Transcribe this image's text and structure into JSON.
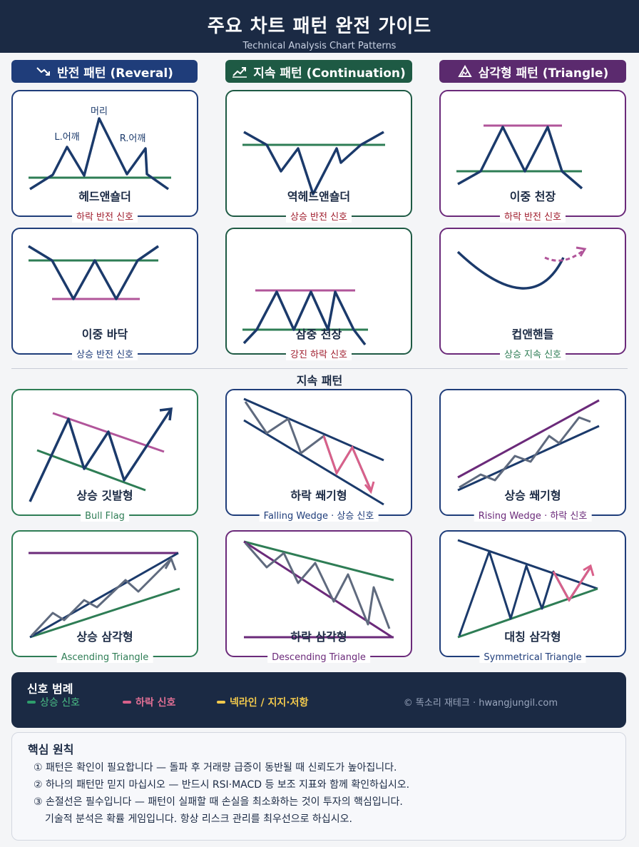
{
  "header": {
    "title": "주요 차트 패턴 완전 가이드",
    "subtitle": "Technical Analysis Chart Patterns"
  },
  "categories": {
    "reversal": {
      "label": "반전 패턴 (Reveral)",
      "color": "#1f3d7a"
    },
    "continuation": {
      "label": "지속 패턴 (Continuation)",
      "color": "#1e5a44"
    },
    "triangle": {
      "label": "삼각형 패턴 (Triangle)",
      "color": "#5b2a6e"
    }
  },
  "colors": {
    "bullish": "#2e7d55",
    "bearish": "#d9608a",
    "neckline": "#f2c94c",
    "navy": "#1b3a6b",
    "purple": "#6b2a7a"
  },
  "labels": {
    "head": "머리",
    "left_shoulder": "L.어깨",
    "right_shoulder": "R.어깨"
  },
  "cards": [
    {
      "name": "헤드앤숄더",
      "signal": "하락 반전 신호"
    },
    {
      "name": "역헤드앤숄더",
      "signal": "상승 반전 신호"
    },
    {
      "name": "이중 천장",
      "signal": "하락 반전 신호"
    },
    {
      "name": "이중 바닥",
      "signal": "상승 반전 신호"
    },
    {
      "name": "삼중 천장",
      "signal": "강진 하락 신호"
    },
    {
      "name": "컵앤핸들",
      "signal": "상승 지속 신호"
    },
    {
      "name": "상승 깃발형",
      "signal": "Bull Flag"
    },
    {
      "name": "하락 쐐기형",
      "signal": "Falling Wedge · 상승 신호"
    },
    {
      "name": "상승 쐐기형",
      "signal": "Rising Wedge · 하락 신호"
    },
    {
      "name": "상승 삼각형",
      "signal": "Ascending Triangle"
    },
    {
      "name": "하락 삼각형",
      "signal": "Descending Triangle"
    },
    {
      "name": "대칭 삼각형",
      "signal": "Symmetrical Triangle"
    }
  ],
  "section2_label": "지속 패턴",
  "legend": {
    "title": "신호 범례",
    "bullish": "상승 신호",
    "bearish": "하락 신호",
    "neckline": "넥라인 / 지지·저항",
    "credit": "© 똑소리 재테크 · hwangjungil.com"
  },
  "principles": {
    "title": "핵심 원칙",
    "items": [
      "① 패턴은 확인이 필요합니다 — 돌파 후 거래량 급증이 동반될 때 신뢰도가 높아집니다.",
      "② 하나의 패턴만 믿지 마십시오 — 반드시 RSI·MACD 등 보조 지표와 함께 확인하십시오.",
      "③ 손절선은 필수입니다 — 패턴이 실패할 때 손실을 최소화하는 것이 투자의 핵심입니다.",
      "기술적 분석은 확률 게임입니다. 항상 리스크 관리를 최우선으로 하십시오."
    ]
  }
}
